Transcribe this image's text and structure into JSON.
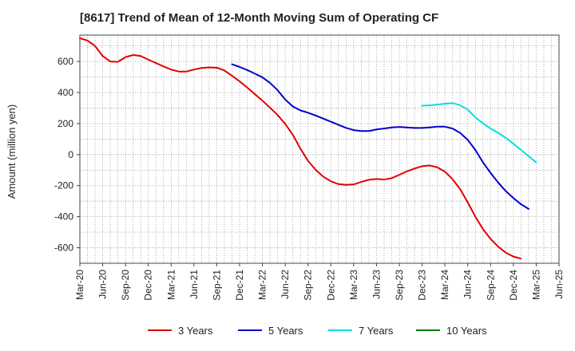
{
  "chart_data": {
    "type": "line",
    "title": "[8617]  Trend of Mean of 12-Month Moving Sum of Operating CF",
    "xlabel": "",
    "ylabel": "Amount (million yen)",
    "ylim": [
      -700,
      770
    ],
    "yticks": [
      -600,
      -400,
      -200,
      0,
      200,
      400,
      600
    ],
    "grid": true,
    "legend_position": "bottom",
    "x_start": "2020-03",
    "x_end": "2025-06",
    "x_tick_labels": [
      "Mar-20",
      "Jun-20",
      "Sep-20",
      "Dec-20",
      "Mar-21",
      "Jun-21",
      "Sep-21",
      "Dec-21",
      "Mar-22",
      "Jun-22",
      "Sep-22",
      "Dec-22",
      "Mar-23",
      "Jun-23",
      "Sep-23",
      "Dec-23",
      "Mar-24",
      "Jun-24",
      "Sep-24",
      "Dec-24",
      "Mar-25",
      "Jun-25"
    ],
    "series": [
      {
        "name": "3 Years",
        "color": "#e00000",
        "start_index": 0,
        "values": [
          750,
          735,
          700,
          635,
          600,
          598,
          628,
          642,
          635,
          612,
          590,
          568,
          548,
          535,
          535,
          548,
          558,
          562,
          560,
          542,
          508,
          472,
          432,
          390,
          348,
          302,
          255,
          198,
          128,
          38,
          -40,
          -98,
          -142,
          -172,
          -190,
          -195,
          -192,
          -176,
          -162,
          -157,
          -160,
          -152,
          -130,
          -108,
          -90,
          -75,
          -70,
          -82,
          -110,
          -158,
          -222,
          -308,
          -400,
          -480,
          -543,
          -593,
          -632,
          -657,
          -670
        ]
      },
      {
        "name": "5 Years",
        "color": "#0000cc",
        "start_index": 20,
        "values": [
          582,
          565,
          545,
          522,
          498,
          462,
          415,
          355,
          310,
          285,
          270,
          252,
          232,
          212,
          192,
          172,
          158,
          152,
          152,
          162,
          168,
          175,
          178,
          175,
          172,
          172,
          175,
          180,
          180,
          168,
          140,
          95,
          30,
          -50,
          -118,
          -180,
          -235,
          -280,
          -320,
          -350
        ]
      },
      {
        "name": "7 Years",
        "color": "#00e0e0",
        "start_index": 45,
        "values": [
          315,
          318,
          322,
          328,
          332,
          318,
          290,
          240,
          202,
          168,
          140,
          108,
          70,
          30,
          -10,
          -50
        ]
      },
      {
        "name": "10 Years",
        "color": "#008000",
        "start_index": 0,
        "values": []
      }
    ]
  }
}
